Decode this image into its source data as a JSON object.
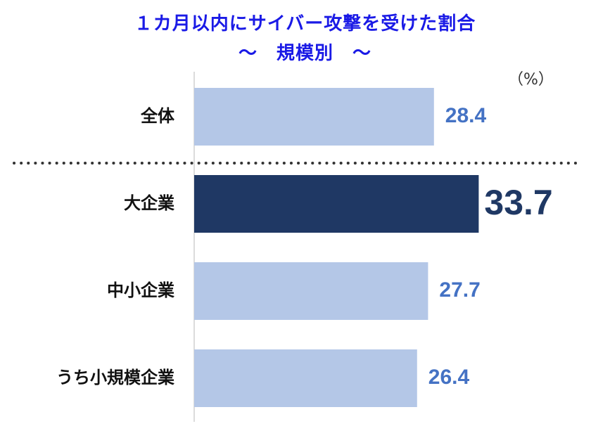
{
  "title": "１カ月以内にサイバー攻撃を受けた割合",
  "subtitle": "～　規模別　～",
  "unit": "（%）",
  "colors": {
    "title": "#1a1ae6",
    "bar_default": "#b4c7e7",
    "bar_highlight": "#1f3864",
    "label_default": "#4472c4",
    "label_highlight": "#1f3864",
    "category_text": "#111111",
    "axis": "#d0d0d0",
    "separator": "#333333"
  },
  "chart_data": {
    "type": "bar",
    "orientation": "horizontal",
    "categories": [
      "全体",
      "大企業",
      "中小企業",
      "うち小規模企業"
    ],
    "values": [
      28.4,
      33.7,
      27.7,
      26.4
    ],
    "value_labels": [
      "28.4",
      "33.7",
      "27.7",
      "26.4"
    ],
    "highlight_index": 1,
    "separator_after_index": 0,
    "xlim": [
      0,
      35
    ],
    "grid": false,
    "legend": "none"
  }
}
